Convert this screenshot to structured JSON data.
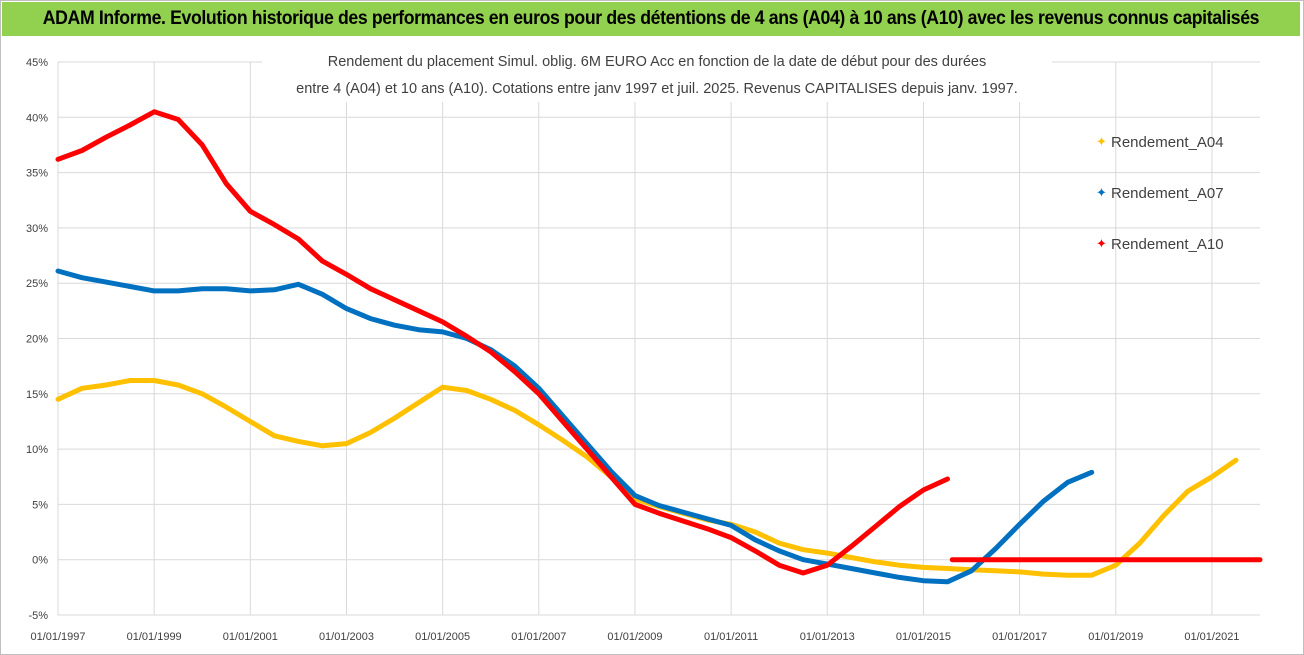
{
  "header": {
    "banner_title": "ADAM Informe. Evolution historique des performances en euros pour des détentions de 4 ans (A04) à 10 ans (A10) avec les revenus connus capitalisés",
    "banner_color": "#92d050"
  },
  "chart_data": {
    "type": "line",
    "title_lines": [
      "Rendement du placement Simul. oblig. 6M EURO Acc en fonction de la date de début pour des durées",
      "entre 4 (A04) et 10 ans (A10). Cotations entre janv 1997 et juil. 2025. Revenus CAPITALISES depuis janv. 1997."
    ],
    "xlabel": "",
    "ylabel": "",
    "x_tick_labels": [
      "01/01/1997",
      "01/01/1999",
      "01/01/2001",
      "01/01/2003",
      "01/01/2005",
      "01/01/2007",
      "01/01/2009",
      "01/01/2011",
      "01/01/2013",
      "01/01/2015",
      "01/01/2017",
      "01/01/2019",
      "01/01/2021"
    ],
    "y_tick_labels": [
      "45%",
      "40%",
      "35%",
      "30%",
      "25%",
      "20%",
      "15%",
      "10%",
      "5%",
      "0%",
      "-5%"
    ],
    "xlim": [
      1997.0,
      2022.0
    ],
    "ylim": [
      -5,
      45
    ],
    "grid": true,
    "legend_position": "right",
    "series": [
      {
        "name": "Rendement_A04",
        "color": "#ffc000",
        "points": [
          [
            1997.0,
            14.5
          ],
          [
            1997.5,
            15.5
          ],
          [
            1998.0,
            15.8
          ],
          [
            1998.5,
            16.2
          ],
          [
            1999.0,
            16.2
          ],
          [
            1999.5,
            15.8
          ],
          [
            2000.0,
            15.0
          ],
          [
            2000.5,
            13.8
          ],
          [
            2001.0,
            12.5
          ],
          [
            2001.5,
            11.2
          ],
          [
            2002.0,
            10.7
          ],
          [
            2002.5,
            10.3
          ],
          [
            2003.0,
            10.5
          ],
          [
            2003.5,
            11.5
          ],
          [
            2004.0,
            12.8
          ],
          [
            2004.5,
            14.2
          ],
          [
            2005.0,
            15.6
          ],
          [
            2005.5,
            15.3
          ],
          [
            2006.0,
            14.5
          ],
          [
            2006.5,
            13.5
          ],
          [
            2007.0,
            12.2
          ],
          [
            2007.5,
            10.8
          ],
          [
            2008.0,
            9.3
          ],
          [
            2008.5,
            7.5
          ],
          [
            2009.0,
            5.5
          ],
          [
            2009.5,
            4.8
          ],
          [
            2010.0,
            4.2
          ],
          [
            2010.5,
            3.6
          ],
          [
            2011.0,
            3.2
          ],
          [
            2011.5,
            2.5
          ],
          [
            2012.0,
            1.5
          ],
          [
            2012.5,
            0.9
          ],
          [
            2013.0,
            0.6
          ],
          [
            2013.5,
            0.2
          ],
          [
            2014.0,
            -0.2
          ],
          [
            2014.5,
            -0.5
          ],
          [
            2015.0,
            -0.7
          ],
          [
            2015.5,
            -0.8
          ],
          [
            2016.0,
            -0.9
          ],
          [
            2016.5,
            -1.0
          ],
          [
            2017.0,
            -1.1
          ],
          [
            2017.5,
            -1.3
          ],
          [
            2018.0,
            -1.4
          ],
          [
            2018.5,
            -1.4
          ],
          [
            2019.0,
            -0.5
          ],
          [
            2019.5,
            1.5
          ],
          [
            2020.0,
            4.0
          ],
          [
            2020.5,
            6.2
          ],
          [
            2021.0,
            7.5
          ],
          [
            2021.5,
            9.0
          ]
        ]
      },
      {
        "name": "Rendement_A07",
        "color": "#0070c0",
        "points": [
          [
            1997.0,
            26.1
          ],
          [
            1997.5,
            25.5
          ],
          [
            1998.0,
            25.1
          ],
          [
            1998.5,
            24.7
          ],
          [
            1999.0,
            24.3
          ],
          [
            1999.5,
            24.3
          ],
          [
            2000.0,
            24.5
          ],
          [
            2000.5,
            24.5
          ],
          [
            2001.0,
            24.3
          ],
          [
            2001.5,
            24.4
          ],
          [
            2002.0,
            24.9
          ],
          [
            2002.5,
            24.0
          ],
          [
            2003.0,
            22.7
          ],
          [
            2003.5,
            21.8
          ],
          [
            2004.0,
            21.2
          ],
          [
            2004.5,
            20.8
          ],
          [
            2005.0,
            20.6
          ],
          [
            2005.5,
            20.0
          ],
          [
            2006.0,
            19.0
          ],
          [
            2006.5,
            17.5
          ],
          [
            2007.0,
            15.5
          ],
          [
            2007.5,
            13.0
          ],
          [
            2008.0,
            10.5
          ],
          [
            2008.5,
            8.0
          ],
          [
            2009.0,
            5.8
          ],
          [
            2009.5,
            4.9
          ],
          [
            2010.0,
            4.3
          ],
          [
            2010.5,
            3.7
          ],
          [
            2011.0,
            3.1
          ],
          [
            2011.5,
            1.8
          ],
          [
            2012.0,
            0.8
          ],
          [
            2012.5,
            0.0
          ],
          [
            2013.0,
            -0.4
          ],
          [
            2013.5,
            -0.8
          ],
          [
            2014.0,
            -1.2
          ],
          [
            2014.5,
            -1.6
          ],
          [
            2015.0,
            -1.9
          ],
          [
            2015.5,
            -2.0
          ],
          [
            2016.0,
            -1.0
          ],
          [
            2016.5,
            1.0
          ],
          [
            2017.0,
            3.2
          ],
          [
            2017.5,
            5.3
          ],
          [
            2018.0,
            7.0
          ],
          [
            2018.5,
            7.9
          ]
        ]
      },
      {
        "name": "Rendement_A10",
        "color": "#ff0000",
        "points": [
          [
            1997.0,
            36.2
          ],
          [
            1997.5,
            37.0
          ],
          [
            1998.0,
            38.2
          ],
          [
            1998.5,
            39.3
          ],
          [
            1999.0,
            40.5
          ],
          [
            1999.5,
            39.8
          ],
          [
            2000.0,
            37.5
          ],
          [
            2000.5,
            34.0
          ],
          [
            2001.0,
            31.5
          ],
          [
            2001.5,
            30.3
          ],
          [
            2002.0,
            29.0
          ],
          [
            2002.5,
            27.0
          ],
          [
            2003.0,
            25.8
          ],
          [
            2003.5,
            24.5
          ],
          [
            2004.0,
            23.5
          ],
          [
            2004.5,
            22.5
          ],
          [
            2005.0,
            21.5
          ],
          [
            2005.5,
            20.2
          ],
          [
            2006.0,
            18.8
          ],
          [
            2006.5,
            17.0
          ],
          [
            2007.0,
            15.0
          ],
          [
            2007.5,
            12.5
          ],
          [
            2008.0,
            10.0
          ],
          [
            2008.5,
            7.5
          ],
          [
            2009.0,
            5.0
          ],
          [
            2009.5,
            4.2
          ],
          [
            2010.0,
            3.5
          ],
          [
            2010.5,
            2.8
          ],
          [
            2011.0,
            2.0
          ],
          [
            2011.5,
            0.8
          ],
          [
            2012.0,
            -0.5
          ],
          [
            2012.5,
            -1.2
          ],
          [
            2013.0,
            -0.5
          ],
          [
            2013.5,
            1.2
          ],
          [
            2014.0,
            3.0
          ],
          [
            2014.5,
            4.8
          ],
          [
            2015.0,
            6.3
          ],
          [
            2015.5,
            7.3
          ]
        ]
      },
      {
        "name": "Rendement_A10",
        "color": "#ff0000",
        "legend": false,
        "points": [
          [
            2015.6,
            0.0
          ],
          [
            2022.0,
            0.0
          ]
        ]
      }
    ]
  }
}
